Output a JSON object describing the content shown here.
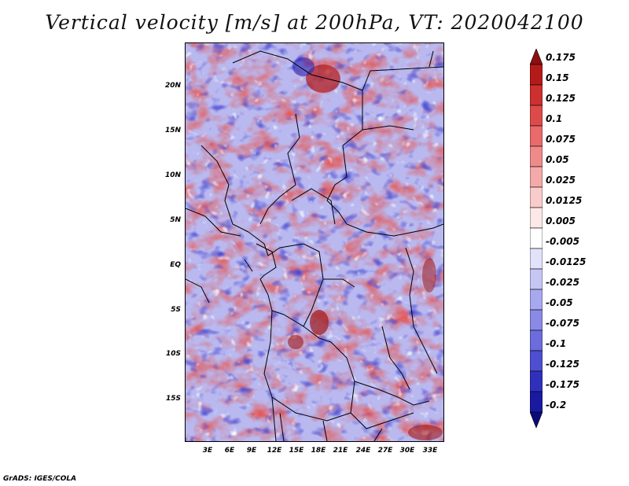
{
  "title": "Vertical velocity [m/s] at 200hPa, VT: 2020042100",
  "credit": "GrADS: IGES/COLA",
  "map": {
    "lat_labels": [
      "20N",
      "15N",
      "10N",
      "5N",
      "EQ",
      "5S",
      "10S",
      "15S"
    ],
    "lon_labels": [
      "3E",
      "6E",
      "9E",
      "12E",
      "15E",
      "18E",
      "21E",
      "24E",
      "27E",
      "30E",
      "33E"
    ]
  },
  "colorbar": {
    "levels": [
      "0.175",
      "0.15",
      "0.125",
      "0.1",
      "0.075",
      "0.05",
      "0.025",
      "0.0125",
      "0.005",
      "-0.005",
      "-0.0125",
      "-0.025",
      "-0.05",
      "-0.075",
      "-0.1",
      "-0.125",
      "-0.175",
      "-0.2"
    ],
    "colors": [
      "#8b1010",
      "#b51a1a",
      "#cc3030",
      "#dd4a4a",
      "#e86a6a",
      "#ef8a8a",
      "#f4aaaa",
      "#f9cccc",
      "#fde8e8",
      "#ffffff",
      "#e2e2fb",
      "#c6c6f5",
      "#a8a8ee",
      "#8a8ae6",
      "#6c6cdc",
      "#4e4ed0",
      "#3030bd",
      "#1a1aa0",
      "#0a0a78"
    ]
  }
}
